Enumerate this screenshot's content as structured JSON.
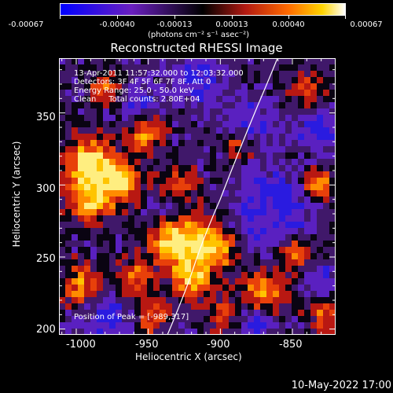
{
  "colorbar": {
    "tick_labels": [
      "-0.00067",
      "-0.00040",
      "-0.00013",
      "0.00013",
      "0.00040",
      "0.00067"
    ],
    "units": "(photons cm⁻² s⁻¹ asec⁻²)"
  },
  "plot": {
    "title": "Reconstructed RHESSI Image",
    "info_lines": [
      "13-Apr-2011 11:57:32.000 to 12:03:32.000",
      "Detectors: 3F 4F 5F 6F 7F 8F, Att 0",
      "Energy Range: 25.0 - 50.0 keV",
      "Clean     Total counts: 2.80E+04"
    ],
    "peak_label": "Position of Peak = [-989,317]",
    "xlabel": "Heliocentric X (arcsec)",
    "ylabel": "Heliocentric Y (arcsec)",
    "x_ticks": [
      "-1000",
      "-950",
      "-900",
      "-850"
    ],
    "y_ticks": [
      "200",
      "250",
      "300",
      "350"
    ],
    "xlim": [
      -1012,
      -820
    ],
    "ylim": [
      196,
      388
    ]
  },
  "footer": {
    "timestamp": "10-May-2022 17:00"
  }
}
